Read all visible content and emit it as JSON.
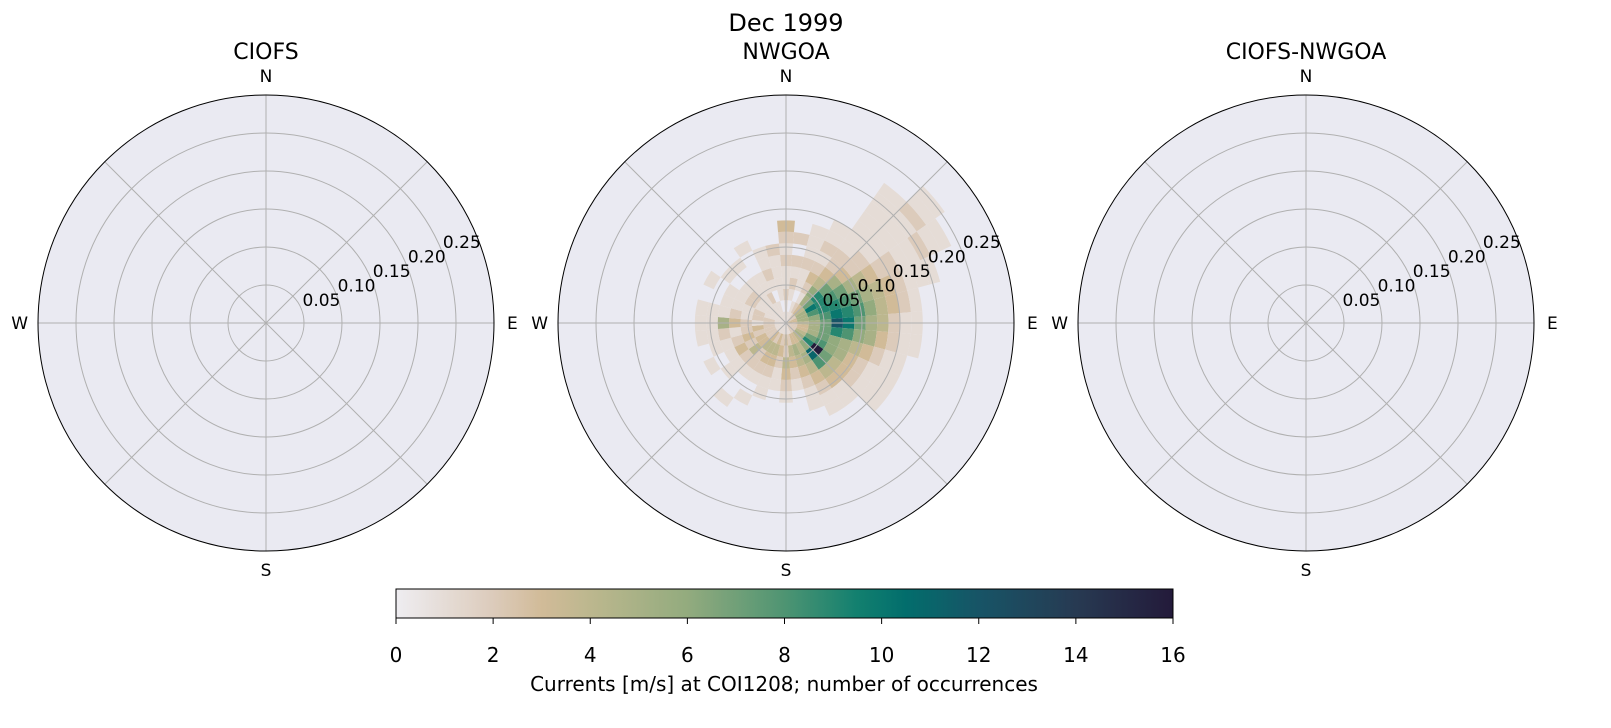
{
  "chart_data": {
    "type": "heatmap",
    "title": "Dec 1999",
    "colorbar": {
      "label": "Currents [m/s] at COI1208; number of occurrences",
      "range": [
        0,
        16
      ],
      "ticks": [
        "0",
        "2",
        "4",
        "6",
        "8",
        "10",
        "12",
        "14",
        "16"
      ],
      "colormap_stops": [
        [
          0,
          "#eeedf1"
        ],
        [
          2,
          "#dccbbb"
        ],
        [
          3,
          "#d1bb98"
        ],
        [
          4,
          "#bcb78e"
        ],
        [
          6,
          "#93ab7e"
        ],
        [
          8,
          "#4e9472"
        ],
        [
          9.5,
          "#12806f"
        ],
        [
          10.5,
          "#026d6c"
        ],
        [
          12,
          "#175466"
        ],
        [
          14,
          "#273a52"
        ],
        [
          16,
          "#231a3a"
        ]
      ]
    },
    "panels": [
      {
        "title": "CIOFS",
        "cells": []
      },
      {
        "title": "NWGOA",
        "direction_bin_width_deg": 10,
        "speed_bin_width": 0.015,
        "cells_by_direction": [
          {
            "dir": 0,
            "counts": [
              1,
              1,
              2,
              1,
              1,
              2,
              1,
              2,
              3
            ]
          },
          {
            "dir": 10,
            "counts": [
              1,
              0,
              1,
              2,
              1,
              2,
              0,
              2
            ]
          },
          {
            "dir": 20,
            "counts": [
              1,
              1,
              0,
              1,
              1,
              2,
              1,
              1,
              1
            ]
          },
          {
            "dir": 30,
            "counts": [
              1,
              2,
              1,
              2,
              3,
              2,
              1,
              2,
              1,
              1
            ]
          },
          {
            "dir": 40,
            "counts": [
              2,
              3,
              5,
              6,
              4,
              3,
              2,
              2,
              1,
              1,
              1,
              1,
              1,
              1,
              1
            ]
          },
          {
            "dir": 50,
            "counts": [
              2,
              4,
              7,
              9,
              7,
              5,
              3,
              2,
              2,
              1,
              1,
              1,
              1,
              1,
              2,
              1,
              1
            ]
          },
          {
            "dir": 60,
            "counts": [
              2,
              5,
              10,
              9,
              8,
              7,
              5,
              4,
              3,
              2,
              2,
              1,
              1,
              2,
              1,
              1
            ]
          },
          {
            "dir": 70,
            "counts": [
              3,
              5,
              8,
              9,
              9,
              8,
              7,
              5,
              4,
              3,
              2,
              1,
              1,
              1
            ]
          },
          {
            "dir": 80,
            "counts": [
              3,
              5,
              6,
              8,
              10,
              9,
              8,
              6,
              4,
              3,
              2,
              1
            ]
          },
          {
            "dir": 90,
            "counts": [
              3,
              4,
              5,
              7,
              12,
              10,
              7,
              5,
              4,
              2,
              1,
              1
            ]
          },
          {
            "dir": 100,
            "counts": [
              2,
              3,
              5,
              7,
              9,
              8,
              6,
              5,
              3,
              2,
              1,
              1
            ]
          },
          {
            "dir": 110,
            "counts": [
              2,
              3,
              5,
              7,
              6,
              5,
              4,
              3,
              2,
              1,
              1
            ]
          },
          {
            "dir": 120,
            "counts": [
              2,
              4,
              7,
              8,
              6,
              5,
              3,
              2,
              1,
              1,
              1
            ]
          },
          {
            "dir": 130,
            "counts": [
              2,
              5,
              9,
              16,
              7,
              4,
              3,
              2,
              1,
              1,
              1
            ]
          },
          {
            "dir": 140,
            "counts": [
              2,
              4,
              6,
              11,
              8,
              4,
              3,
              1,
              1
            ]
          },
          {
            "dir": 150,
            "counts": [
              2,
              3,
              4,
              5,
              4,
              3,
              2,
              1,
              1
            ]
          },
          {
            "dir": 160,
            "counts": [
              1,
              3,
              5,
              4,
              3,
              2,
              1,
              1
            ]
          },
          {
            "dir": 170,
            "counts": [
              1,
              2,
              4,
              3,
              2,
              1
            ]
          },
          {
            "dir": 180,
            "counts": [
              1,
              3,
              2,
              4,
              3,
              2,
              1
            ]
          },
          {
            "dir": 190,
            "counts": [
              1,
              2,
              3,
              2,
              1,
              1
            ]
          },
          {
            "dir": 200,
            "counts": [
              1,
              3,
              4,
              3,
              2,
              1,
              1
            ]
          },
          {
            "dir": 210,
            "counts": [
              1,
              2,
              4,
              3,
              2,
              1,
              0,
              1
            ]
          },
          {
            "dir": 220,
            "counts": [
              1,
              3,
              4,
              2,
              2,
              1,
              0,
              0,
              1
            ]
          },
          {
            "dir": 230,
            "counts": [
              1,
              2,
              3,
              4,
              2,
              1,
              1
            ]
          },
          {
            "dir": 240,
            "counts": [
              1,
              2,
              3,
              2,
              3,
              1,
              0,
              1
            ]
          },
          {
            "dir": 250,
            "counts": [
              1,
              2,
              2,
              3,
              2,
              1,
              1
            ]
          },
          {
            "dir": 260,
            "counts": [
              1,
              2,
              3,
              2,
              1,
              2,
              1,
              1
            ]
          },
          {
            "dir": 270,
            "counts": [
              1,
              2,
              1,
              2,
              3,
              5,
              1,
              1
            ]
          },
          {
            "dir": 280,
            "counts": [
              1,
              2,
              2,
              1,
              2,
              1,
              1,
              1
            ]
          },
          {
            "dir": 290,
            "counts": [
              1,
              1,
              2,
              1,
              1,
              1
            ]
          },
          {
            "dir": 300,
            "counts": [
              1,
              1,
              1,
              2,
              1,
              1,
              0,
              1
            ]
          },
          {
            "dir": 310,
            "counts": [
              1,
              1,
              1,
              2,
              1,
              0,
              1
            ]
          },
          {
            "dir": 320,
            "counts": [
              1,
              1,
              1,
              1,
              1,
              0,
              1
            ]
          },
          {
            "dir": 330,
            "counts": [
              1,
              1,
              2,
              1,
              1,
              0,
              0,
              1
            ]
          },
          {
            "dir": 340,
            "counts": [
              1,
              1,
              0,
              1,
              2,
              1,
              1
            ]
          },
          {
            "dir": 350,
            "counts": [
              1,
              0,
              1,
              1,
              1,
              1,
              2
            ]
          }
        ]
      },
      {
        "title": "CIOFS-NWGOA",
        "cells": []
      }
    ],
    "compass_labels": [
      "N",
      "E",
      "S",
      "W"
    ],
    "radial_ticks": [
      "0.05",
      "0.10",
      "0.15",
      "0.20",
      "0.25"
    ],
    "radial_tick_values": [
      0.05,
      0.1,
      0.15,
      0.2,
      0.25
    ],
    "radial_range": [
      0,
      0.3
    ],
    "grid": true,
    "axes_background": "#eaeaf2",
    "grid_color": "#b0b0b0"
  }
}
